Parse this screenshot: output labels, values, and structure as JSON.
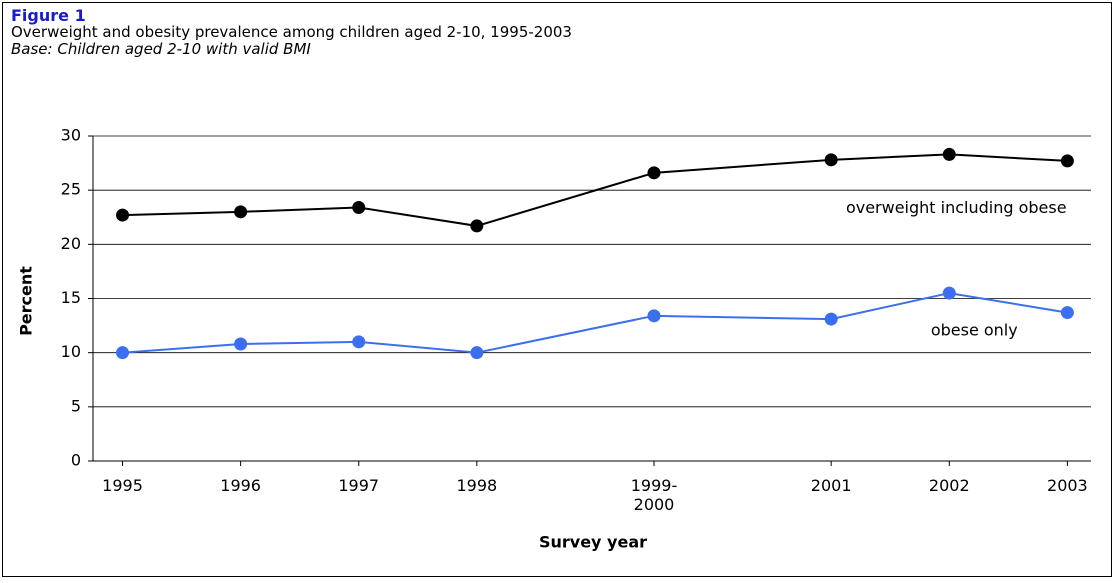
{
  "chart_data": {
    "type": "line",
    "title": "Figure 1",
    "subtitle": "Overweight and obesity prevalence among children aged 2-10, 1995-2003",
    "note": "Base: Children aged 2-10 with valid BMI",
    "x_label": "Survey year",
    "y_label": "Percent",
    "x": [
      1995,
      1996,
      1997,
      1998,
      1999.5,
      2001,
      2002,
      2003
    ],
    "xlim": [
      1994.75,
      2003.2
    ],
    "xticks": [
      {
        "value": 1995,
        "label": "1995"
      },
      {
        "value": 1996,
        "label": "1996"
      },
      {
        "value": 1997,
        "label": "1997"
      },
      {
        "value": 1998,
        "label": "1998"
      },
      {
        "value": 1999.5,
        "label": "1999-2000"
      },
      {
        "value": 2001,
        "label": "2001"
      },
      {
        "value": 2002,
        "label": "2002"
      },
      {
        "value": 2003,
        "label": "2003"
      }
    ],
    "ylim": [
      0,
      30
    ],
    "yticks": [
      0,
      5,
      10,
      15,
      20,
      25,
      30
    ],
    "grid": true,
    "series": [
      {
        "name": "overweight including obese",
        "color": "#000000",
        "values": [
          22.7,
          23.0,
          23.4,
          21.7,
          26.6,
          27.8,
          28.3,
          27.7
        ]
      },
      {
        "name": "obese only",
        "color": "#3b6ff0",
        "values": [
          10.0,
          10.8,
          11.0,
          10.0,
          13.4,
          13.1,
          15.5,
          13.7
        ]
      }
    ]
  }
}
